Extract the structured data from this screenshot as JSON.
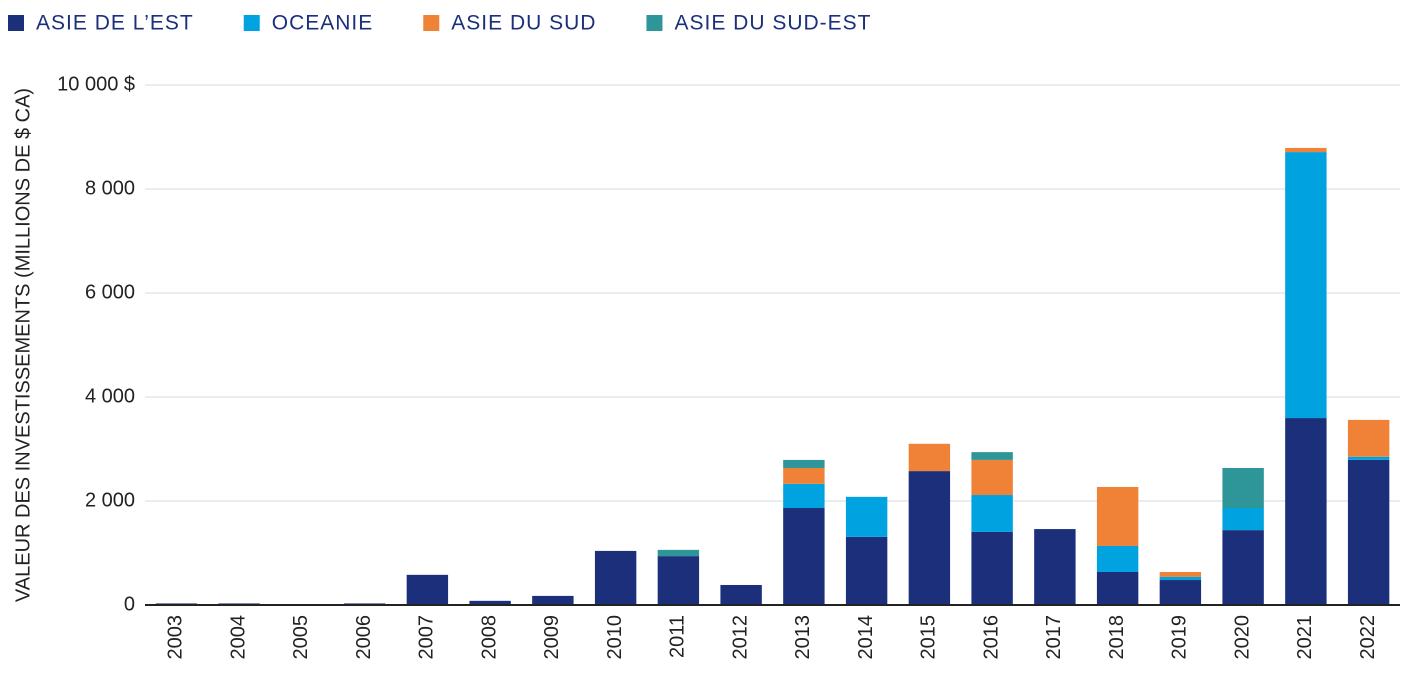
{
  "chart_data": {
    "type": "stacked-bar",
    "y_label": "VALEUR DES INVESTISSEMENTS (MILLIONS DE $ CA)",
    "categories": [
      "2003",
      "2004",
      "2005",
      "2006",
      "2007",
      "2008",
      "2009",
      "2010",
      "2011",
      "2012",
      "2013",
      "2014",
      "2015",
      "2016",
      "2017",
      "2018",
      "2019",
      "2020",
      "2021",
      "2022"
    ],
    "series": [
      {
        "name": "ASIE DE L’EST",
        "color": "#1b2f7a",
        "values": [
          30,
          30,
          10,
          30,
          580,
          80,
          175,
          1040,
          940,
          385,
          1865,
          1310,
          2575,
          1405,
          1460,
          635,
          480,
          1440,
          3595,
          2790
        ]
      },
      {
        "name": "OCEANIE",
        "color": "#00a3e0",
        "values": [
          0,
          0,
          0,
          0,
          0,
          0,
          0,
          0,
          0,
          0,
          465,
          770,
          0,
          710,
          0,
          500,
          60,
          425,
          5115,
          60
        ]
      },
      {
        "name": "ASIE DU SUD",
        "color": "#f08238",
        "values": [
          0,
          0,
          0,
          0,
          0,
          0,
          0,
          0,
          0,
          0,
          305,
          0,
          525,
          675,
          0,
          1135,
          95,
          0,
          80,
          710
        ]
      },
      {
        "name": "ASIE DU SUD-EST",
        "color": "#2e9599",
        "values": [
          0,
          0,
          0,
          0,
          0,
          0,
          0,
          0,
          120,
          0,
          155,
          0,
          0,
          150,
          0,
          0,
          0,
          770,
          0,
          0
        ]
      }
    ],
    "ylim": [
      0,
      10000
    ],
    "yticks": [
      0,
      {
        "value": 2000,
        "label": "2 000"
      },
      {
        "value": 4000,
        "label": "4 000"
      },
      {
        "value": 6000,
        "label": "6 000"
      },
      {
        "value": 8000,
        "label": "8 000"
      },
      {
        "value": 10000,
        "label": "10 000 $"
      }
    ],
    "grid": true,
    "legend": "top"
  }
}
